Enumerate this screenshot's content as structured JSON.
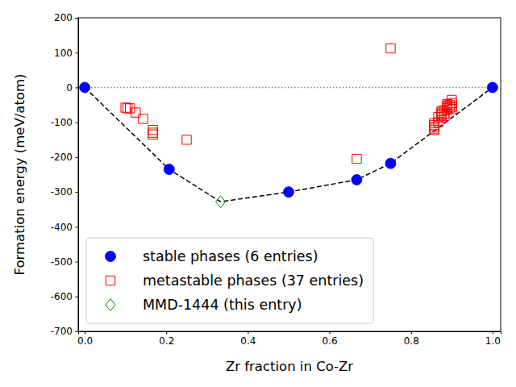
{
  "chart_data": {
    "type": "scatter",
    "x_label": "Zr fraction in Co-Zr",
    "y_label": "Formation energy (meV/atom)",
    "xlim": [
      -0.016,
      1.02
    ],
    "ylim": [
      -700,
      200
    ],
    "xticks": [
      {
        "value": 0,
        "label": "0.0"
      },
      {
        "value": 0.2,
        "label": "0.2"
      },
      {
        "value": 0.4,
        "label": "0.4"
      },
      {
        "value": 0.6,
        "label": "0.6"
      },
      {
        "value": 0.8,
        "label": "0.8"
      },
      {
        "value": 1,
        "label": "1.0"
      }
    ],
    "yticks": [
      -700,
      -600,
      -500,
      -400,
      -300,
      -200,
      -100,
      0,
      100,
      200
    ],
    "legend": "lower left",
    "series": [
      {
        "type": "line",
        "color": "#000000",
        "line_style": "dashed",
        "x": [
          0,
          0.207,
          0.333,
          0.5,
          0.667,
          0.75,
          1
        ],
        "values": [
          0,
          -235,
          -328,
          -300,
          -265,
          -218,
          0
        ]
      },
      {
        "type": "line",
        "color": "#808080",
        "line_style": "dotted",
        "x": [
          0,
          1
        ],
        "values": [
          0,
          0
        ]
      },
      {
        "name": "stable phases (6 entries)",
        "type": "scatter",
        "color": "#0000ff",
        "marker": "circle",
        "x": [
          0,
          0.207,
          0.5,
          0.667,
          0.75,
          1
        ],
        "values": [
          0,
          -235,
          -300,
          -265,
          -218,
          0
        ]
      },
      {
        "name": "metastable phases (37 entries)",
        "type": "scatter",
        "color": "#ff0000",
        "marker": "square",
        "x": [
          0.1,
          0.105,
          0.111,
          0.125,
          0.143,
          0.167,
          0.167,
          0.167,
          0.25,
          0.667,
          0.75,
          0.857,
          0.857,
          0.857,
          0.857,
          0.857,
          0.867,
          0.867,
          0.875,
          0.875,
          0.875,
          0.875,
          0.875,
          0.882,
          0.882,
          0.882,
          0.889,
          0.889,
          0.889,
          0.889,
          0.889,
          0.895,
          0.895,
          0.9,
          0.9,
          0.9,
          0.9
        ],
        "values": [
          -58,
          -60,
          -60,
          -72,
          -90,
          -122,
          -130,
          -135,
          -150,
          -205,
          112,
          -103,
          -108,
          -113,
          -118,
          -122,
          -85,
          -100,
          -68,
          -72,
          -76,
          -80,
          -86,
          -66,
          -75,
          -82,
          -48,
          -52,
          -56,
          -60,
          -64,
          -50,
          -58,
          -36,
          -45,
          -55,
          -62
        ]
      },
      {
        "name": "MMD-1444 (this entry)",
        "type": "scatter",
        "color": "#008000",
        "marker": "diamond",
        "x": [
          0.333
        ],
        "values": [
          -328
        ]
      }
    ]
  }
}
